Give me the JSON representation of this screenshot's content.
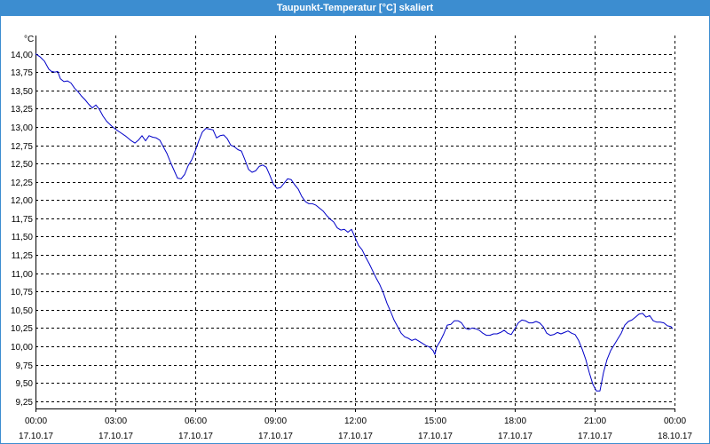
{
  "colors": {
    "title_bar": "#3c8dd0",
    "title_text": "#ffffff",
    "background": "#ffffff",
    "plot_background": "#ffffff",
    "grid": "#000000",
    "axis": "#000000",
    "series": "#0000c8"
  },
  "chart_data": {
    "type": "line",
    "title": "Taupunkt-Temperatur [°C] skaliert",
    "xlabel": "",
    "ylabel": "°C",
    "xlim": [
      "17.10.17 00:00",
      "18.10.17 00:00"
    ],
    "ylim": [
      9.15,
      14.25
    ],
    "grid": true,
    "legend": "none",
    "y_ticks": [
      "14,00",
      "13,75",
      "13,50",
      "13,25",
      "13,00",
      "12,75",
      "12,50",
      "12,25",
      "12,00",
      "11,75",
      "11,50",
      "11,25",
      "11,00",
      "10,75",
      "10,50",
      "10,25",
      "10,00",
      "9,75",
      "9,50",
      "9,25"
    ],
    "x_ticks": [
      {
        "time": "00:00",
        "date": "17.10.17"
      },
      {
        "time": "03:00",
        "date": "17.10.17"
      },
      {
        "time": "06:00",
        "date": "17.10.17"
      },
      {
        "time": "09:00",
        "date": "17.10.17"
      },
      {
        "time": "12:00",
        "date": "17.10.17"
      },
      {
        "time": "15:00",
        "date": "17.10.17"
      },
      {
        "time": "18:00",
        "date": "17.10.17"
      },
      {
        "time": "21:00",
        "date": "17.10.17"
      },
      {
        "time": "00:00",
        "date": "18.10.17"
      }
    ],
    "series": [
      {
        "x": [
          "00:00",
          "00:10",
          "00:20",
          "00:30",
          "00:36",
          "00:44",
          "00:50",
          "00:56",
          "01:04",
          "01:12",
          "01:20",
          "01:28",
          "01:36",
          "01:44",
          "01:52",
          "02:00",
          "02:08",
          "02:16",
          "02:24",
          "02:32",
          "02:40",
          "02:52",
          "03:00",
          "03:12",
          "03:24",
          "03:36",
          "03:44",
          "03:52",
          "04:00",
          "04:08",
          "04:16",
          "04:24",
          "04:32",
          "04:40",
          "04:48",
          "04:56",
          "05:04",
          "05:12",
          "05:20",
          "05:28",
          "05:36",
          "05:44",
          "05:52",
          "06:00",
          "06:08",
          "06:16",
          "06:24",
          "06:32",
          "06:40",
          "06:48",
          "06:56",
          "07:04",
          "07:12",
          "07:20",
          "07:28",
          "07:36",
          "07:44",
          "07:52",
          "08:00",
          "08:08",
          "08:16",
          "08:24",
          "08:32",
          "08:40",
          "08:48",
          "08:56",
          "09:04",
          "09:12",
          "09:20",
          "09:28",
          "09:36",
          "09:44",
          "09:52",
          "10:00",
          "10:08",
          "10:16",
          "10:24",
          "10:32",
          "10:40",
          "10:48",
          "10:56",
          "11:04",
          "11:12",
          "11:20",
          "11:28",
          "11:36",
          "11:44",
          "11:52",
          "12:00",
          "12:08",
          "12:16",
          "12:24",
          "12:32",
          "12:40",
          "12:48",
          "12:56",
          "13:04",
          "13:12",
          "13:20",
          "13:28",
          "13:36",
          "13:44",
          "13:52",
          "14:00",
          "14:08",
          "14:16",
          "14:24",
          "14:32",
          "14:40",
          "14:48",
          "14:56",
          "15:00",
          "15:04",
          "15:12",
          "15:20",
          "15:28",
          "15:36",
          "15:44",
          "15:52",
          "16:00",
          "16:08",
          "16:16",
          "16:24",
          "16:32",
          "16:40",
          "16:48",
          "16:56",
          "17:04",
          "17:12",
          "17:20",
          "17:28",
          "17:36",
          "17:44",
          "17:52",
          "18:00",
          "18:08",
          "18:16",
          "18:24",
          "18:32",
          "18:40",
          "18:48",
          "18:56",
          "19:04",
          "19:12",
          "19:20",
          "19:28",
          "19:36",
          "19:44",
          "19:52",
          "20:00",
          "20:08",
          "20:16",
          "20:24",
          "20:32",
          "20:40",
          "20:48",
          "20:56",
          "21:04",
          "21:12",
          "21:20",
          "21:28",
          "21:36",
          "21:44",
          "21:52",
          "22:00",
          "22:08",
          "22:16",
          "22:24",
          "22:32",
          "22:40",
          "22:48",
          "22:56",
          "23:04",
          "23:12",
          "23:20",
          "23:28",
          "23:36",
          "23:44",
          "23:52",
          "23:56"
        ],
        "y": [
          14.0,
          13.96,
          13.9,
          13.79,
          13.76,
          13.75,
          13.76,
          13.66,
          13.62,
          13.63,
          13.6,
          13.53,
          13.48,
          13.42,
          13.37,
          13.31,
          13.26,
          13.3,
          13.24,
          13.15,
          13.08,
          13.01,
          12.97,
          12.92,
          12.87,
          12.81,
          12.78,
          12.82,
          12.88,
          12.81,
          12.88,
          12.86,
          12.85,
          12.82,
          12.73,
          12.64,
          12.52,
          12.41,
          12.3,
          12.29,
          12.35,
          12.47,
          12.55,
          12.67,
          12.81,
          12.93,
          12.98,
          12.97,
          12.96,
          12.85,
          12.88,
          12.89,
          12.84,
          12.75,
          12.73,
          12.69,
          12.67,
          12.55,
          12.42,
          12.38,
          12.4,
          12.46,
          12.48,
          12.45,
          12.34,
          12.22,
          12.16,
          12.17,
          12.23,
          12.29,
          12.28,
          12.21,
          12.15,
          12.05,
          11.98,
          11.95,
          11.95,
          11.93,
          11.89,
          11.85,
          11.79,
          11.74,
          11.7,
          11.62,
          11.59,
          11.6,
          11.56,
          11.6,
          11.49,
          11.38,
          11.32,
          11.22,
          11.13,
          11.03,
          10.93,
          10.84,
          10.73,
          10.59,
          10.48,
          10.36,
          10.27,
          10.18,
          10.13,
          10.11,
          10.08,
          10.1,
          10.07,
          10.04,
          10.01,
          9.99,
          9.94,
          9.89,
          9.99,
          10.07,
          10.17,
          10.29,
          10.3,
          10.35,
          10.35,
          10.32,
          10.25,
          10.23,
          10.25,
          10.24,
          10.22,
          10.18,
          10.15,
          10.15,
          10.17,
          10.17,
          10.19,
          10.22,
          10.18,
          10.16,
          10.24,
          10.32,
          10.36,
          10.35,
          10.32,
          10.32,
          10.34,
          10.32,
          10.27,
          10.18,
          10.15,
          10.16,
          10.19,
          10.17,
          10.19,
          10.21,
          10.18,
          10.16,
          10.08,
          9.96,
          9.82,
          9.64,
          9.48,
          9.39,
          9.39,
          9.64,
          9.82,
          9.94,
          10.02,
          10.1,
          10.18,
          10.29,
          10.34,
          10.36,
          10.4,
          10.44,
          10.45,
          10.4,
          10.42,
          10.35,
          10.33,
          10.33,
          10.32,
          10.28,
          10.27,
          10.24
        ]
      }
    ]
  }
}
